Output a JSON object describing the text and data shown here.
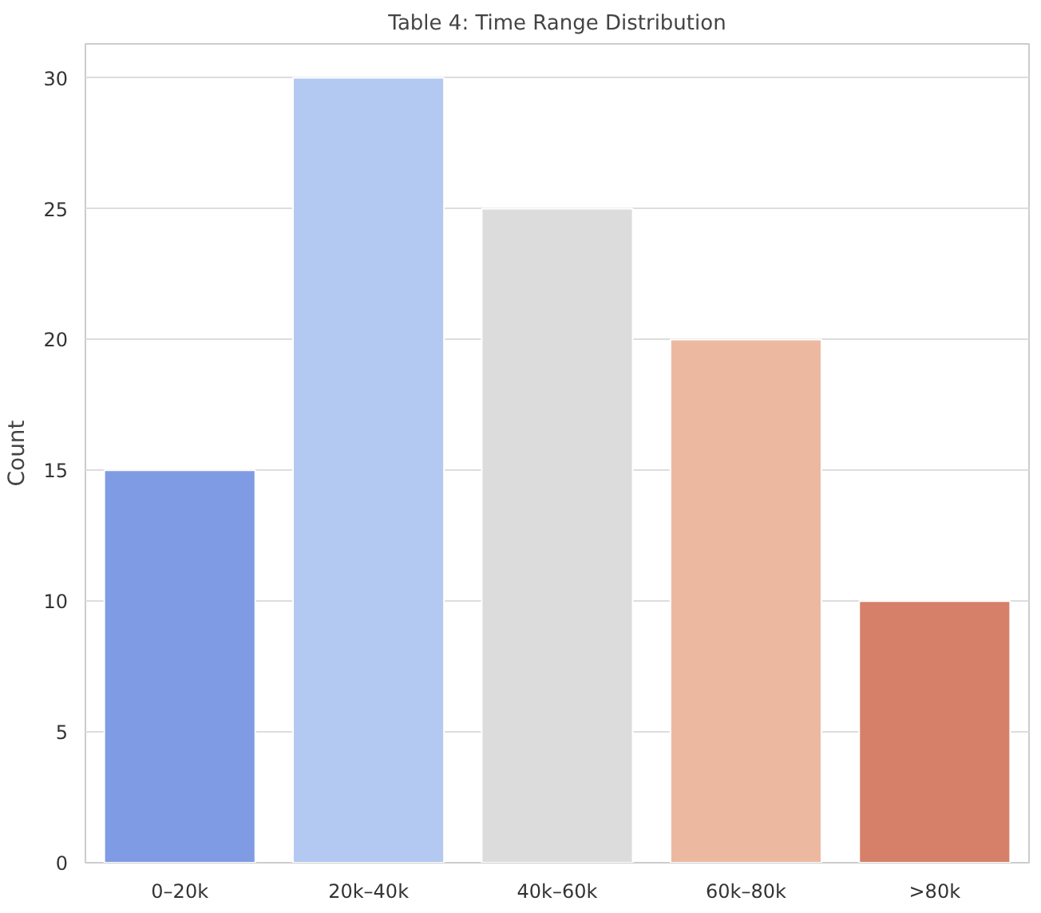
{
  "chart_data": {
    "type": "bar",
    "title": "Table 4: Time Range Distribution",
    "ylabel": "Count",
    "categories": [
      "0–20k",
      "20k–40k",
      "40k–60k",
      "60k–80k",
      ">80k"
    ],
    "values": [
      15,
      30,
      25,
      20,
      10
    ],
    "colors": [
      "#7f9be3",
      "#b3c9f2",
      "#dcdcdc",
      "#ecb9a0",
      "#d6806a"
    ],
    "ylim": [
      0,
      31.3
    ],
    "yticks": [
      0,
      5,
      10,
      15,
      20,
      25,
      30
    ],
    "grid": "y"
  }
}
